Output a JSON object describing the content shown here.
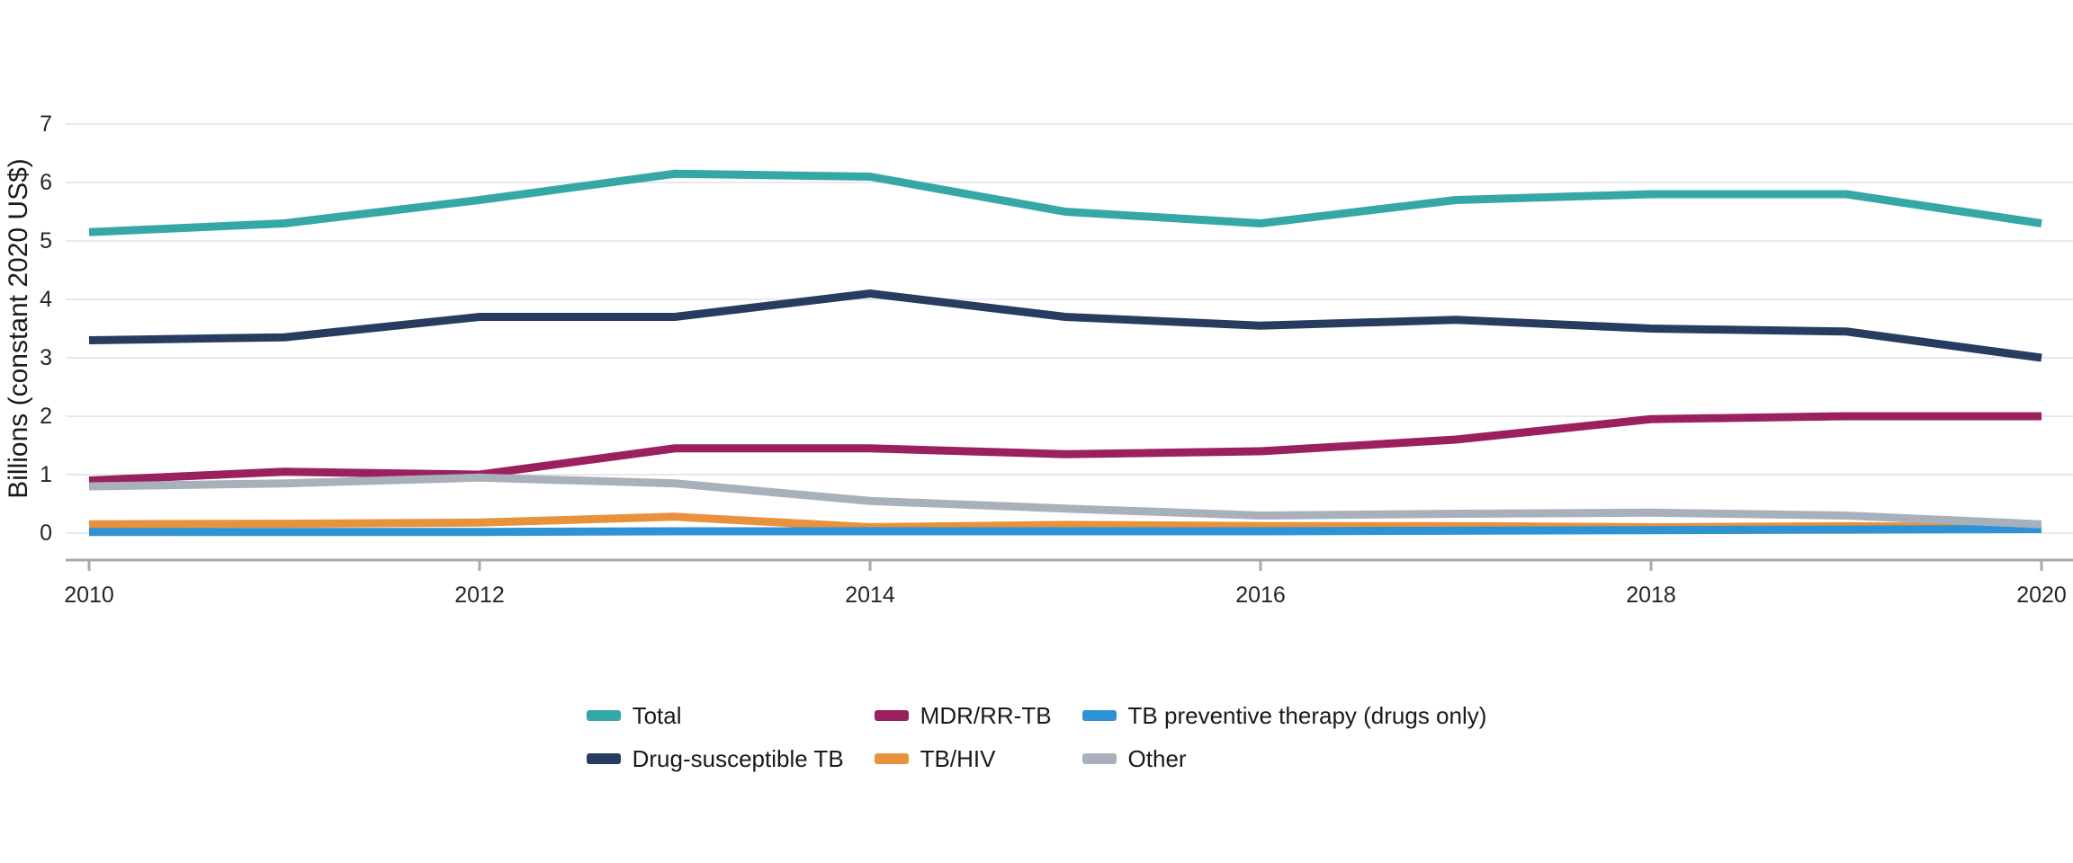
{
  "figure": {
    "background_color": "#ffffff",
    "text_color": "#262626",
    "gridline_color": "#e9e9e9",
    "axis_line_color": "#a9a9a9"
  },
  "chart_data": {
    "type": "line",
    "title": "",
    "xlabel": "",
    "ylabel": "Billions (constant 2020 US$)",
    "x": [
      2010,
      2011,
      2012,
      2013,
      2014,
      2015,
      2016,
      2017,
      2018,
      2019,
      2020
    ],
    "x_tick_years": [
      2010,
      2012,
      2014,
      2016,
      2018,
      2020
    ],
    "x_tick_labels": [
      "2010",
      "2012",
      "2014",
      "2016",
      "2018",
      "2020"
    ],
    "y_ticks": [
      0,
      1,
      2,
      3,
      4,
      5,
      6,
      7
    ],
    "ylim": [
      0,
      7
    ],
    "grid": "horizontal",
    "legend_position": "bottom",
    "series": [
      {
        "name": "Total",
        "color": "#36a7a7",
        "values": [
          5.15,
          5.3,
          5.7,
          6.15,
          6.1,
          5.5,
          5.3,
          5.7,
          5.8,
          5.8,
          5.3
        ]
      },
      {
        "name": "Drug-susceptible TB",
        "color": "#273d60",
        "values": [
          3.3,
          3.35,
          3.7,
          3.7,
          4.1,
          3.7,
          3.55,
          3.65,
          3.5,
          3.45,
          3.0
        ]
      },
      {
        "name": "MDR/RR-TB",
        "color": "#9a215e",
        "values": [
          0.9,
          1.05,
          1.0,
          1.45,
          1.45,
          1.35,
          1.4,
          1.6,
          1.95,
          2.0,
          2.0
        ]
      },
      {
        "name": "TB/HIV",
        "color": "#e8923c",
        "values": [
          0.15,
          0.16,
          0.18,
          0.28,
          0.1,
          0.14,
          0.12,
          0.12,
          0.1,
          0.12,
          0.1
        ]
      },
      {
        "name": "TB preventive therapy (drugs only)",
        "color": "#2d93d5",
        "values": [
          0.02,
          0.02,
          0.02,
          0.03,
          0.03,
          0.03,
          0.03,
          0.04,
          0.05,
          0.06,
          0.07
        ]
      },
      {
        "name": "Other",
        "color": "#a8b1bb",
        "values": [
          0.8,
          0.85,
          0.95,
          0.85,
          0.55,
          0.42,
          0.3,
          0.33,
          0.35,
          0.3,
          0.15
        ]
      }
    ]
  }
}
